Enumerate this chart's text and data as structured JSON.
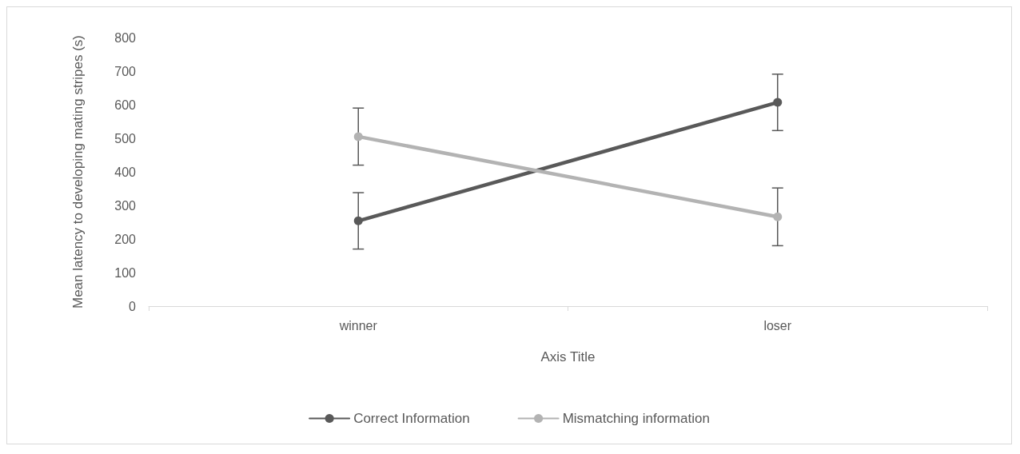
{
  "chart_data": {
    "type": "line",
    "xlabel": "Axis Title",
    "ylabel": "Mean latency to developing mating stripes (s)",
    "categories": [
      "winner",
      "loser"
    ],
    "series": [
      {
        "name": "Correct Information",
        "color": "#595959",
        "values": [
          254,
          607
        ],
        "errors": [
          84,
          84
        ]
      },
      {
        "name": "Mismatching information",
        "color": "#b3b3b3",
        "values": [
          505,
          266
        ],
        "errors": [
          85,
          86
        ]
      }
    ],
    "ylim": [
      0,
      800
    ],
    "yticks": [
      0,
      100,
      200,
      300,
      400,
      500,
      600,
      700,
      800
    ],
    "grid": false,
    "legend": "bottom",
    "marker": "circle",
    "line_style": "solid"
  }
}
